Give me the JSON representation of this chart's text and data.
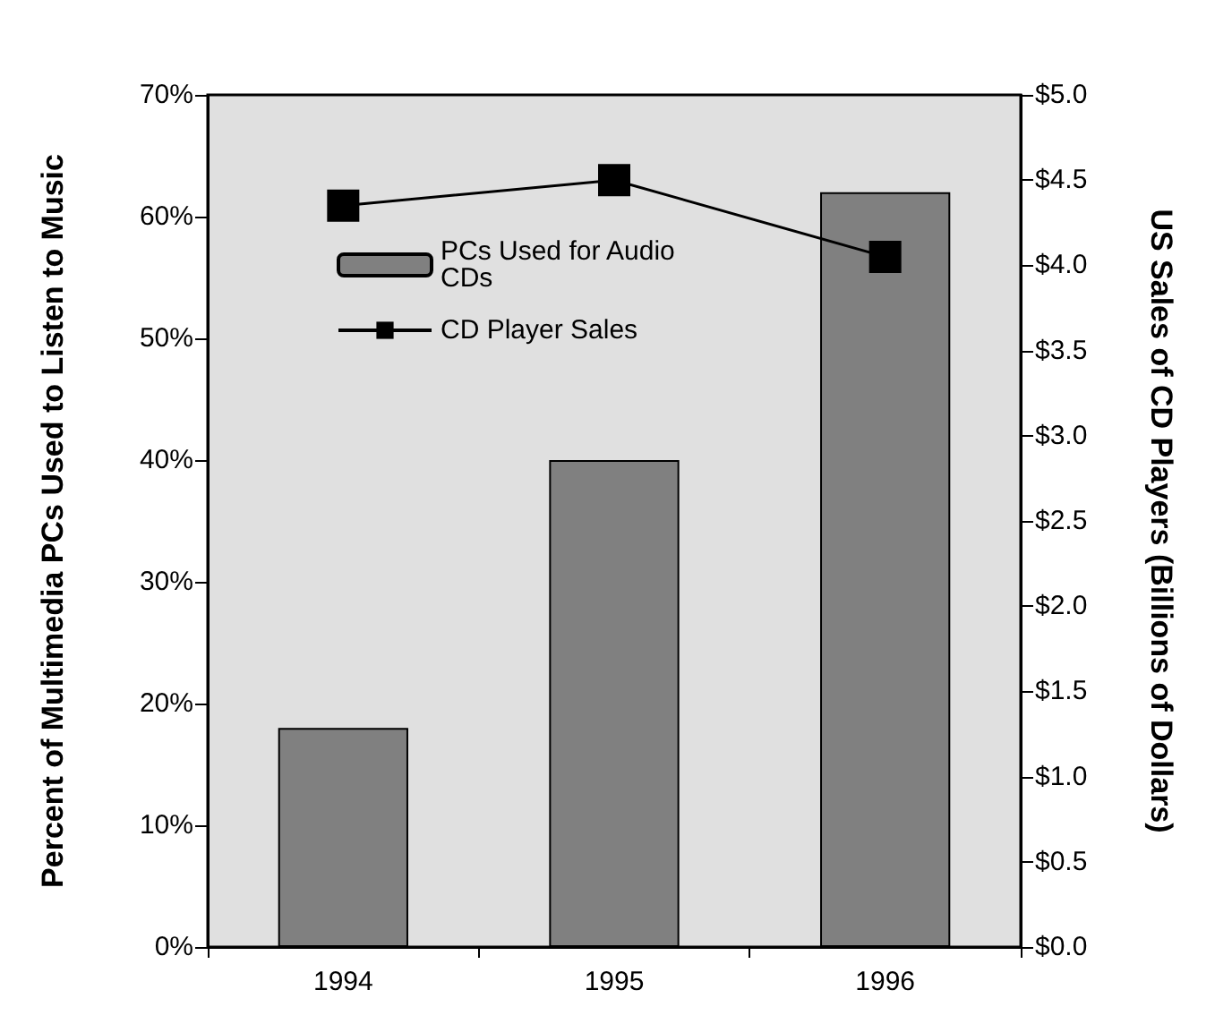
{
  "chart_data": {
    "type": "bar",
    "categories": [
      "1994",
      "1995",
      "1996"
    ],
    "ylabel": "Percent of Multimedia PCs Used to Listen to Music",
    "y2label": "US Sales of CD Players (Billions of Dollars)",
    "ylim": [
      0,
      70
    ],
    "yticks": [
      {
        "value": 0,
        "label": "0%"
      },
      {
        "value": 10,
        "label": "10%"
      },
      {
        "value": 20,
        "label": "20%"
      },
      {
        "value": 30,
        "label": "30%"
      },
      {
        "value": 40,
        "label": "40%"
      },
      {
        "value": 50,
        "label": "50%"
      },
      {
        "value": 60,
        "label": "60%"
      },
      {
        "value": 70,
        "label": "70%"
      }
    ],
    "y2lim": [
      0,
      5
    ],
    "y2ticks": [
      {
        "value": 0,
        "label": "$0.0"
      },
      {
        "value": 0.5,
        "label": "$0.5"
      },
      {
        "value": 1,
        "label": "$1.0"
      },
      {
        "value": 1.5,
        "label": "$1.5"
      },
      {
        "value": 2,
        "label": "$2.0"
      },
      {
        "value": 2.5,
        "label": "$2.5"
      },
      {
        "value": 3,
        "label": "$3.0"
      },
      {
        "value": 3.5,
        "label": "$3.5"
      },
      {
        "value": 4,
        "label": "$4.0"
      },
      {
        "value": 4.5,
        "label": "$4.5"
      },
      {
        "value": 5,
        "label": "$5.0"
      }
    ],
    "series": [
      {
        "name": "PCs Used for Audio CDs",
        "color": "#808080",
        "values": [
          18,
          40,
          62
        ]
      },
      {
        "name": "CD Player Sales",
        "type": "line",
        "axis": "y2",
        "color": "#000000",
        "values": [
          4.35,
          4.5,
          4.05
        ]
      }
    ],
    "legend": "top left",
    "grid": false,
    "marker": "square"
  }
}
